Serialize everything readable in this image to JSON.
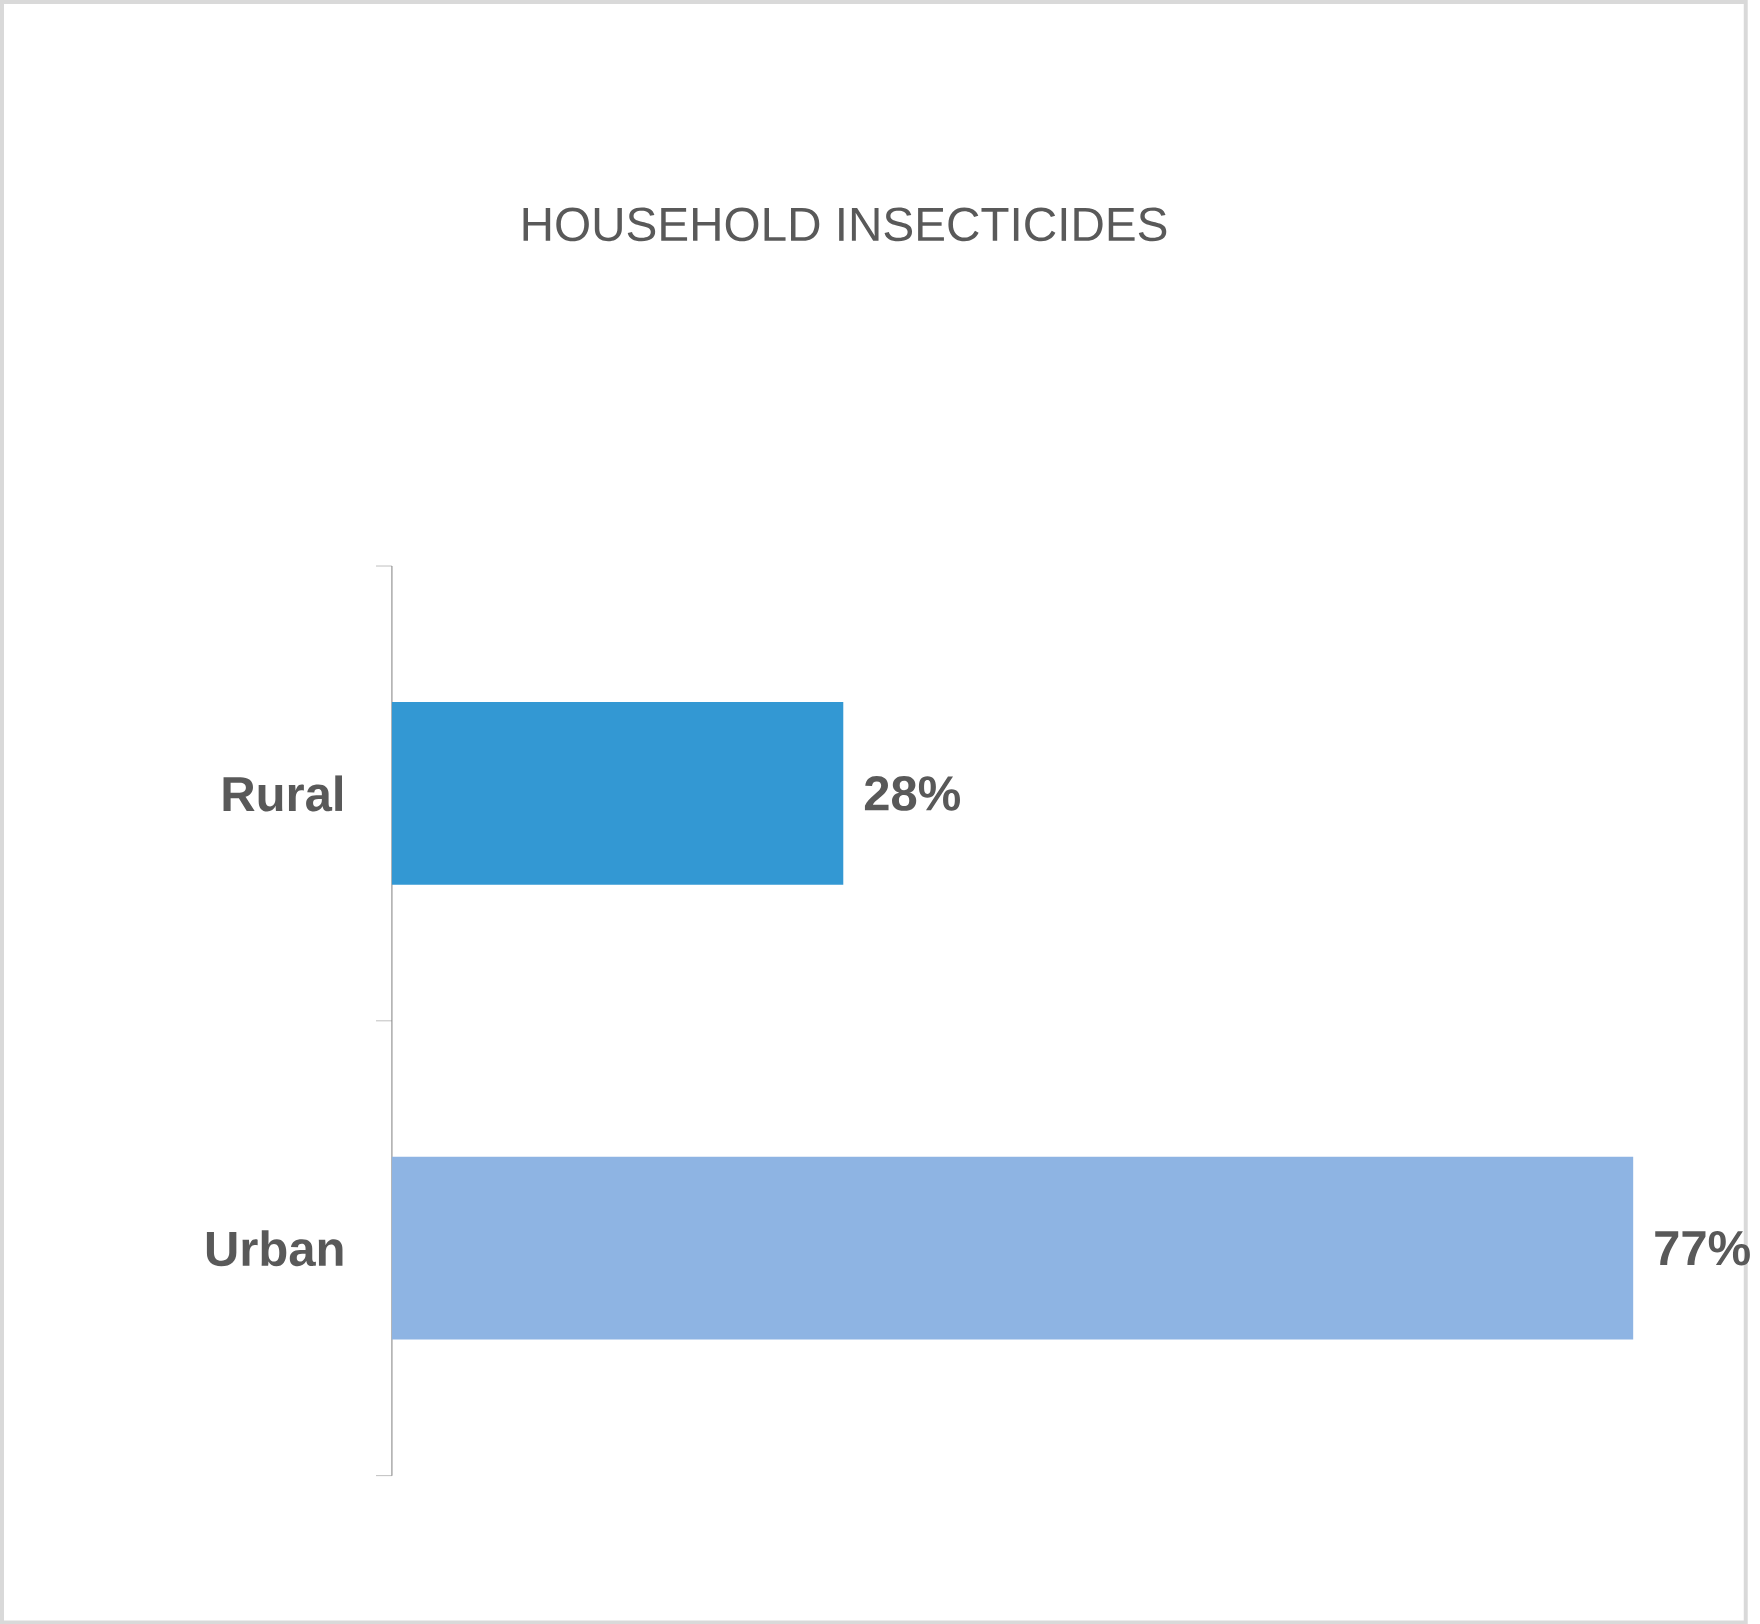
{
  "chart_data": {
    "type": "bar",
    "orientation": "horizontal",
    "title": "HOUSEHOLD INSECTICIDES",
    "categories": [
      "Rural",
      "Urban"
    ],
    "values": [
      28,
      77
    ],
    "value_labels": [
      "28%",
      "77%"
    ],
    "colors": [
      "#3398d3",
      "#8eb4e3"
    ],
    "tick_labels": "y"
  }
}
